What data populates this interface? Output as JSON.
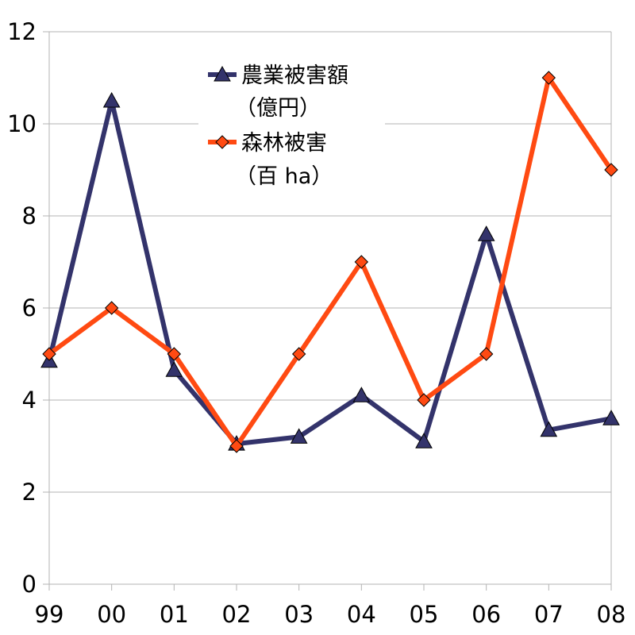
{
  "chart_data": {
    "type": "line",
    "categories": [
      "99",
      "00",
      "01",
      "02",
      "03",
      "04",
      "05",
      "06",
      "07",
      "08"
    ],
    "ylim": [
      0,
      12
    ],
    "yticks": [
      0,
      2,
      4,
      6,
      8,
      10,
      12
    ],
    "grid": true,
    "legend_position": "top-center",
    "series": [
      {
        "name": "農業被害額",
        "unit": "（億円）",
        "color": "#33336b",
        "marker": "triangle",
        "values": [
          4.85,
          10.5,
          4.65,
          3.05,
          3.2,
          4.1,
          3.1,
          7.6,
          3.35,
          3.6
        ]
      },
      {
        "name": "森林被害",
        "unit": "（百 ha）",
        "color": "#ff4a12",
        "marker": "diamond",
        "values": [
          5,
          6,
          5,
          3,
          5,
          7,
          4,
          5,
          11,
          9
        ]
      }
    ]
  }
}
